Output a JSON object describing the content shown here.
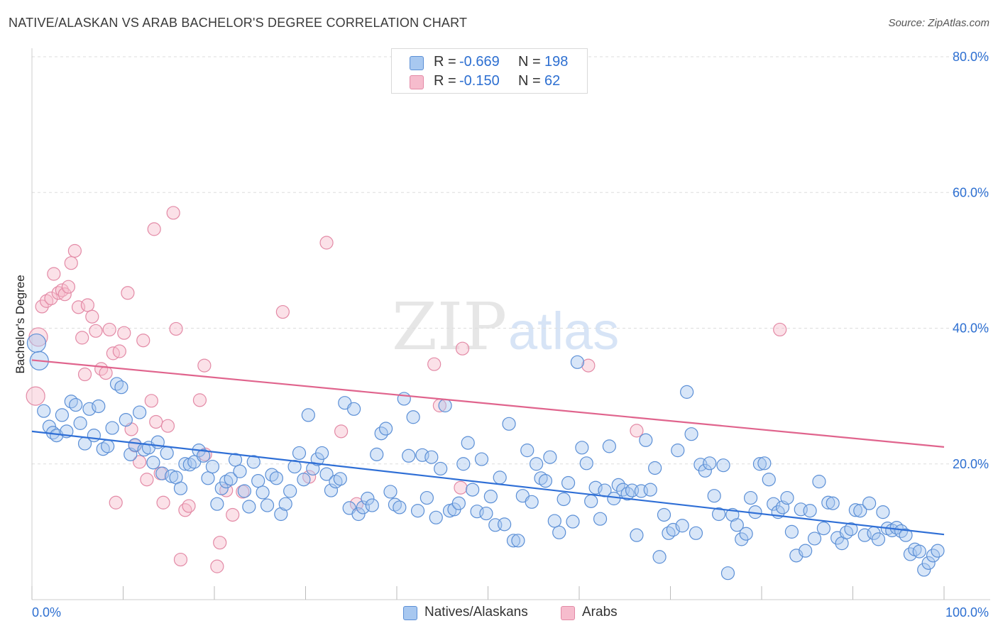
{
  "header": {
    "title": "NATIVE/ALASKAN VS ARAB BACHELOR'S DEGREE CORRELATION CHART",
    "source": "Source: ZipAtlas.com"
  },
  "watermark": {
    "zip": "ZIP",
    "atlas": "atlas"
  },
  "legend_top": {
    "row1": {
      "r_label": "R =",
      "r_value": "-0.669",
      "n_label": "N =",
      "n_value": "198"
    },
    "row2": {
      "r_label": "R =",
      "r_value": "-0.150",
      "n_label": "N =",
      "n_value": "62"
    }
  },
  "legend_bottom": {
    "series1": "Natives/Alaskans",
    "series2": "Arabs"
  },
  "colors": {
    "blue_fill": "#a8c8f0",
    "blue_stroke": "#5b8fd6",
    "blue_line": "#2f6fd6",
    "pink_fill": "#f6bccd",
    "pink_stroke": "#e38aa6",
    "pink_line": "#e0648d",
    "tick_text": "#2d6fd1",
    "grid": "#dddddd"
  },
  "chart_data": {
    "type": "scatter",
    "title": "NATIVE/ALASKAN VS ARAB BACHELOR'S DEGREE CORRELATION CHART",
    "xlabel": "",
    "ylabel": "Bachelor's Degree",
    "xlim": [
      0,
      100
    ],
    "ylim": [
      0,
      80
    ],
    "x_tick_labels": [
      "0.0%",
      "100.0%"
    ],
    "y_ticks": [
      20,
      40,
      60,
      80
    ],
    "y_tick_labels": [
      "20.0%",
      "40.0%",
      "60.0%",
      "80.0%"
    ],
    "grid": true,
    "legend_placement": "bottom-center",
    "series": [
      {
        "name": "Natives/Alaskans",
        "r": -0.669,
        "n": 198,
        "trend": {
          "x": [
            0,
            100
          ],
          "y": [
            24.8,
            9.6
          ]
        },
        "points": [
          [
            0.5,
            37.8
          ],
          [
            0.8,
            35.2
          ],
          [
            1.3,
            27.8
          ],
          [
            1.9,
            25.5
          ],
          [
            2.3,
            24.6
          ],
          [
            2.7,
            24.2
          ],
          [
            3.3,
            27.2
          ],
          [
            3.8,
            24.8
          ],
          [
            4.3,
            29.2
          ],
          [
            4.8,
            28.7
          ],
          [
            5.3,
            26.0
          ],
          [
            5.8,
            23.0
          ],
          [
            6.3,
            28.1
          ],
          [
            6.8,
            24.2
          ],
          [
            7.3,
            28.5
          ],
          [
            7.8,
            22.2
          ],
          [
            8.3,
            22.6
          ],
          [
            8.8,
            25.3
          ],
          [
            9.3,
            31.8
          ],
          [
            9.8,
            31.3
          ],
          [
            10.3,
            26.5
          ],
          [
            10.8,
            21.4
          ],
          [
            11.3,
            22.8
          ],
          [
            11.8,
            27.6
          ],
          [
            12.3,
            22.1
          ],
          [
            12.8,
            22.4
          ],
          [
            13.3,
            20.2
          ],
          [
            13.8,
            23.2
          ],
          [
            14.3,
            18.6
          ],
          [
            14.8,
            21.6
          ],
          [
            15.3,
            18.2
          ],
          [
            15.8,
            18.0
          ],
          [
            16.3,
            16.4
          ],
          [
            16.8,
            20.0
          ],
          [
            17.3,
            19.9
          ],
          [
            17.8,
            20.3
          ],
          [
            18.3,
            22.0
          ],
          [
            18.8,
            21.2
          ],
          [
            19.3,
            17.9
          ],
          [
            19.8,
            19.6
          ],
          [
            20.3,
            14.1
          ],
          [
            20.8,
            16.4
          ],
          [
            21.3,
            17.4
          ],
          [
            21.8,
            17.8
          ],
          [
            22.3,
            20.6
          ],
          [
            22.8,
            18.9
          ],
          [
            23.3,
            16.0
          ],
          [
            23.8,
            13.7
          ],
          [
            24.3,
            20.3
          ],
          [
            24.8,
            17.5
          ],
          [
            25.3,
            15.8
          ],
          [
            25.8,
            13.9
          ],
          [
            26.3,
            18.4
          ],
          [
            26.8,
            17.9
          ],
          [
            27.3,
            12.6
          ],
          [
            27.8,
            14.1
          ],
          [
            28.3,
            16.0
          ],
          [
            28.8,
            19.6
          ],
          [
            29.3,
            21.6
          ],
          [
            29.8,
            17.7
          ],
          [
            30.3,
            27.2
          ],
          [
            30.8,
            19.3
          ],
          [
            31.3,
            20.7
          ],
          [
            31.8,
            21.6
          ],
          [
            32.3,
            18.5
          ],
          [
            32.8,
            16.1
          ],
          [
            33.3,
            17.4
          ],
          [
            33.8,
            17.8
          ],
          [
            34.3,
            29.0
          ],
          [
            34.8,
            13.5
          ],
          [
            35.3,
            28.1
          ],
          [
            35.8,
            12.6
          ],
          [
            36.3,
            13.6
          ],
          [
            36.8,
            14.9
          ],
          [
            37.3,
            13.9
          ],
          [
            37.8,
            21.4
          ],
          [
            38.3,
            24.5
          ],
          [
            38.8,
            25.2
          ],
          [
            39.3,
            15.9
          ],
          [
            39.8,
            14.0
          ],
          [
            40.3,
            13.6
          ],
          [
            40.8,
            29.6
          ],
          [
            41.3,
            21.2
          ],
          [
            41.8,
            26.9
          ],
          [
            42.3,
            13.1
          ],
          [
            42.8,
            21.3
          ],
          [
            43.3,
            15.0
          ],
          [
            43.8,
            21.0
          ],
          [
            44.3,
            12.1
          ],
          [
            44.8,
            19.3
          ],
          [
            45.3,
            28.6
          ],
          [
            45.8,
            13.1
          ],
          [
            46.3,
            13.3
          ],
          [
            46.8,
            14.2
          ],
          [
            47.3,
            20.0
          ],
          [
            47.8,
            23.1
          ],
          [
            48.3,
            16.2
          ],
          [
            48.8,
            13.0
          ],
          [
            49.3,
            20.7
          ],
          [
            49.8,
            12.7
          ],
          [
            50.3,
            15.2
          ],
          [
            50.8,
            11.0
          ],
          [
            51.3,
            18.0
          ],
          [
            51.8,
            11.1
          ],
          [
            52.3,
            25.9
          ],
          [
            52.8,
            8.7
          ],
          [
            53.3,
            8.7
          ],
          [
            53.8,
            15.3
          ],
          [
            54.3,
            22.0
          ],
          [
            54.8,
            14.4
          ],
          [
            55.3,
            20.0
          ],
          [
            55.8,
            17.9
          ],
          [
            56.3,
            17.5
          ],
          [
            56.8,
            21.0
          ],
          [
            57.3,
            11.6
          ],
          [
            57.8,
            9.9
          ],
          [
            58.3,
            14.8
          ],
          [
            58.8,
            17.2
          ],
          [
            59.3,
            11.5
          ],
          [
            59.8,
            35.0
          ],
          [
            60.3,
            22.4
          ],
          [
            60.8,
            20.1
          ],
          [
            61.3,
            14.5
          ],
          [
            61.8,
            16.5
          ],
          [
            62.3,
            11.9
          ],
          [
            62.8,
            16.1
          ],
          [
            63.3,
            22.6
          ],
          [
            63.8,
            14.9
          ],
          [
            64.3,
            16.9
          ],
          [
            64.8,
            16.2
          ],
          [
            65.3,
            15.6
          ],
          [
            65.8,
            16.1
          ],
          [
            66.3,
            9.5
          ],
          [
            66.8,
            16.0
          ],
          [
            67.3,
            23.5
          ],
          [
            67.8,
            16.2
          ],
          [
            68.3,
            19.4
          ],
          [
            68.8,
            6.3
          ],
          [
            69.3,
            12.5
          ],
          [
            69.8,
            9.8
          ],
          [
            70.3,
            10.3
          ],
          [
            70.8,
            22.0
          ],
          [
            71.3,
            10.9
          ],
          [
            71.8,
            30.6
          ],
          [
            72.3,
            24.4
          ],
          [
            72.8,
            9.8
          ],
          [
            73.3,
            19.9
          ],
          [
            73.8,
            19.0
          ],
          [
            74.3,
            20.1
          ],
          [
            74.8,
            15.3
          ],
          [
            75.3,
            12.6
          ],
          [
            75.8,
            19.8
          ],
          [
            76.3,
            3.9
          ],
          [
            76.8,
            12.5
          ],
          [
            77.3,
            11.0
          ],
          [
            77.8,
            8.9
          ],
          [
            78.3,
            9.7
          ],
          [
            78.8,
            15.0
          ],
          [
            79.3,
            12.9
          ],
          [
            79.8,
            20.0
          ],
          [
            80.3,
            20.1
          ],
          [
            80.8,
            17.7
          ],
          [
            81.3,
            14.1
          ],
          [
            81.8,
            12.9
          ],
          [
            82.3,
            13.6
          ],
          [
            82.8,
            15.0
          ],
          [
            83.3,
            10.0
          ],
          [
            83.8,
            6.5
          ],
          [
            84.3,
            13.3
          ],
          [
            84.8,
            7.2
          ],
          [
            85.3,
            13.1
          ],
          [
            85.8,
            9.0
          ],
          [
            86.3,
            17.4
          ],
          [
            86.8,
            10.5
          ],
          [
            87.3,
            14.3
          ],
          [
            87.8,
            14.2
          ],
          [
            88.3,
            9.1
          ],
          [
            88.8,
            8.3
          ],
          [
            89.3,
            9.9
          ],
          [
            89.8,
            10.4
          ],
          [
            90.3,
            13.2
          ],
          [
            90.8,
            13.1
          ],
          [
            91.3,
            9.5
          ],
          [
            91.8,
            14.2
          ],
          [
            92.3,
            9.8
          ],
          [
            92.8,
            8.9
          ],
          [
            93.3,
            12.9
          ],
          [
            93.8,
            10.5
          ],
          [
            94.3,
            10.2
          ],
          [
            94.8,
            10.6
          ],
          [
            95.3,
            10.1
          ],
          [
            95.8,
            9.5
          ],
          [
            96.3,
            6.7
          ],
          [
            96.8,
            7.4
          ],
          [
            97.3,
            7.1
          ],
          [
            97.8,
            4.4
          ],
          [
            98.3,
            5.4
          ],
          [
            98.8,
            6.5
          ],
          [
            99.3,
            7.2
          ]
        ]
      },
      {
        "name": "Arabs",
        "r": -0.15,
        "n": 62,
        "trend": {
          "x": [
            0,
            100
          ],
          "y": [
            35.3,
            22.5
          ]
        },
        "points": [
          [
            0.4,
            30.0
          ],
          [
            0.7,
            38.7
          ],
          [
            1.1,
            43.2
          ],
          [
            1.6,
            44.0
          ],
          [
            2.1,
            44.4
          ],
          [
            2.4,
            48.0
          ],
          [
            2.9,
            45.2
          ],
          [
            3.3,
            45.6
          ],
          [
            3.6,
            45.0
          ],
          [
            4.0,
            46.1
          ],
          [
            4.3,
            49.6
          ],
          [
            4.7,
            51.4
          ],
          [
            5.1,
            43.1
          ],
          [
            5.5,
            38.6
          ],
          [
            5.8,
            33.2
          ],
          [
            6.1,
            43.4
          ],
          [
            6.6,
            41.7
          ],
          [
            7.0,
            39.6
          ],
          [
            7.6,
            34.0
          ],
          [
            8.1,
            33.4
          ],
          [
            8.5,
            39.8
          ],
          [
            8.9,
            36.3
          ],
          [
            9.2,
            14.3
          ],
          [
            9.6,
            36.6
          ],
          [
            10.1,
            39.3
          ],
          [
            10.5,
            45.2
          ],
          [
            10.9,
            25.1
          ],
          [
            11.3,
            22.7
          ],
          [
            11.8,
            20.3
          ],
          [
            12.2,
            38.2
          ],
          [
            12.6,
            17.7
          ],
          [
            13.1,
            29.3
          ],
          [
            13.4,
            54.6
          ],
          [
            13.6,
            26.2
          ],
          [
            14.1,
            18.6
          ],
          [
            14.4,
            14.3
          ],
          [
            14.9,
            25.6
          ],
          [
            15.5,
            57.0
          ],
          [
            15.8,
            39.9
          ],
          [
            16.3,
            5.9
          ],
          [
            16.8,
            13.2
          ],
          [
            17.2,
            13.8
          ],
          [
            18.4,
            29.4
          ],
          [
            18.9,
            34.5
          ],
          [
            19.0,
            21.4
          ],
          [
            20.3,
            4.9
          ],
          [
            20.6,
            8.4
          ],
          [
            21.3,
            16.1
          ],
          [
            22.0,
            12.5
          ],
          [
            23.1,
            15.9
          ],
          [
            27.5,
            42.4
          ],
          [
            30.4,
            18.1
          ],
          [
            32.3,
            52.6
          ],
          [
            33.9,
            24.8
          ],
          [
            35.6,
            14.1
          ],
          [
            44.1,
            34.7
          ],
          [
            44.7,
            28.6
          ],
          [
            47.0,
            16.5
          ],
          [
            47.2,
            37.0
          ],
          [
            61.0,
            34.5
          ],
          [
            66.3,
            24.9
          ],
          [
            82.0,
            39.8
          ]
        ]
      }
    ]
  }
}
